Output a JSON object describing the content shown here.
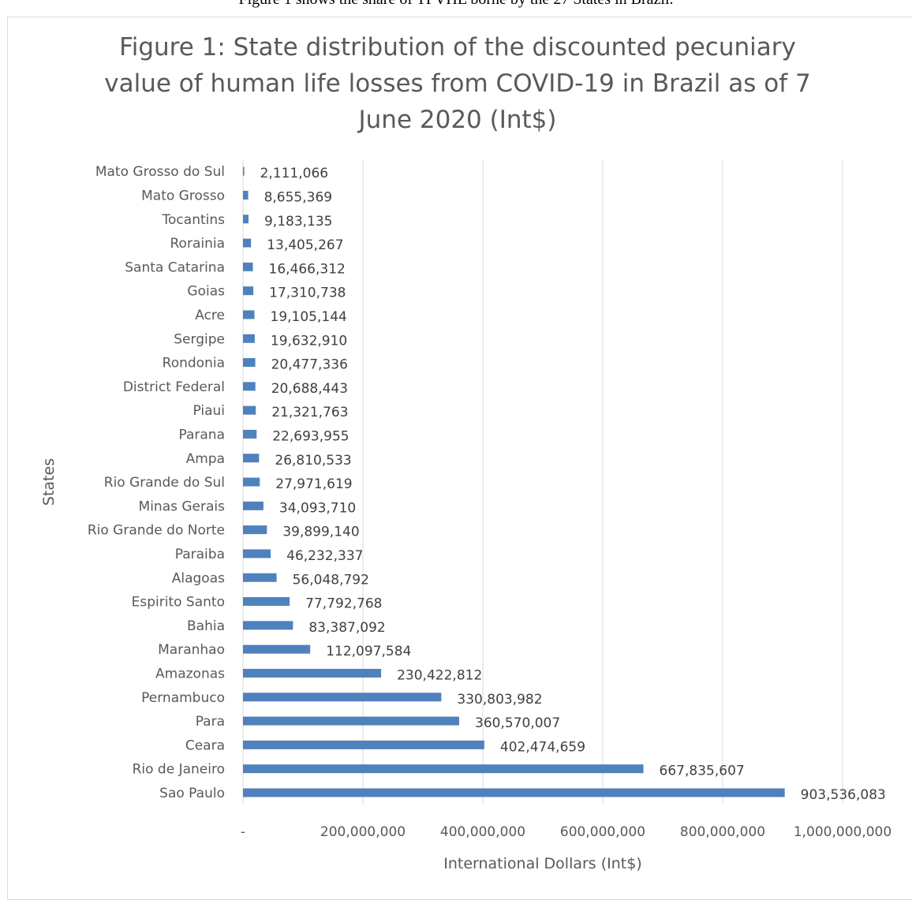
{
  "caption": "Figure 1 shows the share of TPVHL borne by the 27 States in Brazil.",
  "chart_data": {
    "type": "bar",
    "orientation": "horizontal",
    "title": "Figure 1: State distribution of the discounted pecuniary value of human life losses from COVID-19 in Brazil as of 7 June 2020 (Int$)",
    "xlabel": "International Dollars (Int$)",
    "ylabel": "States",
    "xlim": [
      0,
      1000000000
    ],
    "grid": true,
    "bar_color": "#4f81bd",
    "x_ticks": [
      {
        "value": 0,
        "label": "-"
      },
      {
        "value": 200000000,
        "label": "200,000,000"
      },
      {
        "value": 400000000,
        "label": "400,000,000"
      },
      {
        "value": 600000000,
        "label": "600,000,000"
      },
      {
        "value": 800000000,
        "label": "800,000,000"
      },
      {
        "value": 1000000000,
        "label": "1,000,000,000"
      }
    ],
    "categories": [
      "Mato Grosso do Sul",
      "Mato Grosso",
      "Tocantins",
      "Rorainia",
      "Santa Catarina",
      "Goias",
      "Acre",
      "Sergipe",
      "Rondonia",
      "District Federal",
      "Piaui",
      "Parana",
      "Ampa",
      "Rio Grande do Sul",
      "Minas Gerais",
      "Rio Grande do Norte",
      "Paraiba",
      "Alagoas",
      "Espirito Santo",
      "Bahia",
      "Maranhao",
      "Amazonas",
      "Pernambuco",
      "Para",
      "Ceara",
      "Rio de Janeiro",
      "Sao Paulo"
    ],
    "values": [
      2111066,
      8655369,
      9183135,
      13405267,
      16466312,
      17310738,
      19105144,
      19632910,
      20477336,
      20688443,
      21321763,
      22693955,
      26810533,
      27971619,
      34093710,
      39899140,
      46232337,
      56048792,
      77792768,
      83387092,
      112097584,
      230422812,
      330803982,
      360570007,
      402474659,
      667835607,
      903536083
    ],
    "value_labels": [
      "2,111,066",
      "8,655,369",
      "9,183,135",
      "13,405,267",
      "16,466,312",
      "17,310,738",
      "19,105,144",
      "19,632,910",
      "20,477,336",
      "20,688,443",
      "21,321,763",
      "22,693,955",
      "26,810,533",
      "27,971,619",
      "34,093,710",
      "39,899,140",
      "46,232,337",
      "56,048,792",
      "77,792,768",
      "83,387,092",
      "112,097,584",
      "230,422,812",
      "330,803,982",
      "360,570,007",
      "402,474,659",
      "667,835,607",
      "903,536,083"
    ]
  }
}
